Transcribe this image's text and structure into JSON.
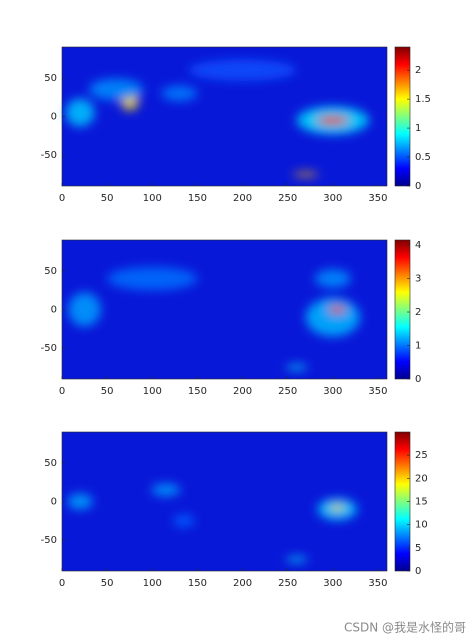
{
  "chart_data": [
    {
      "type": "heatmap",
      "colormap": "jet",
      "xlim": [
        0,
        360
      ],
      "xticks": [
        0,
        50,
        100,
        150,
        200,
        250,
        300,
        350
      ],
      "ylim": [
        -90,
        90
      ],
      "yticks": [
        -50,
        0,
        50
      ],
      "clim": [
        0,
        2.4
      ],
      "cticks": [
        0,
        0.5,
        1,
        1.5,
        2
      ]
    },
    {
      "type": "heatmap",
      "colormap": "jet",
      "xlim": [
        0,
        360
      ],
      "xticks": [
        0,
        50,
        100,
        150,
        200,
        250,
        300,
        350
      ],
      "ylim": [
        -90,
        90
      ],
      "yticks": [
        -50,
        0,
        50
      ],
      "clim": [
        0,
        4.15
      ],
      "cticks": [
        0,
        1,
        2,
        3,
        4
      ]
    },
    {
      "type": "heatmap",
      "colormap": "jet",
      "xlim": [
        0,
        360
      ],
      "xticks": [
        0,
        50,
        100,
        150,
        200,
        250,
        300,
        350
      ],
      "ylim": [
        -90,
        90
      ],
      "yticks": [
        -50,
        0,
        50
      ],
      "clim": [
        0,
        30
      ],
      "cticks": [
        0,
        5,
        10,
        15,
        20,
        25
      ]
    }
  ],
  "watermark": "CSDN @我是水怪的哥"
}
